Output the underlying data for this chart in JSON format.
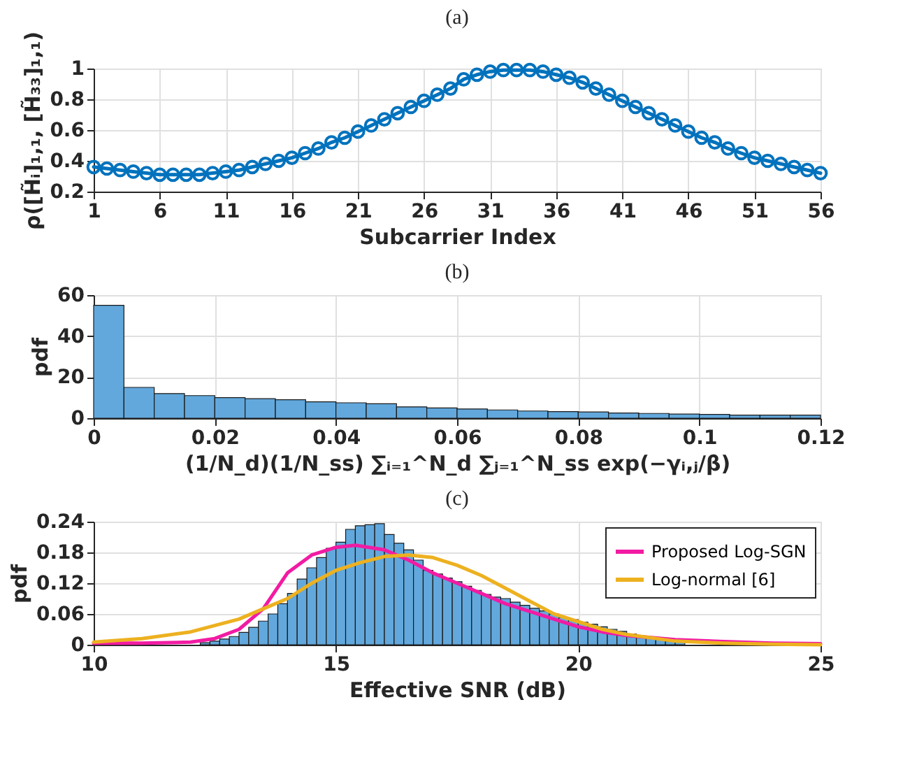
{
  "chart_data": [
    {
      "type": "line",
      "title": "(a)",
      "xlabel": "Subcarrier Index",
      "ylabel": "ρ([H̃ᵢ]₁,₁, [H̃₃₃]₁,₁)",
      "xlim": [
        1,
        56
      ],
      "xticks": [
        1,
        6,
        11,
        16,
        21,
        26,
        31,
        36,
        41,
        46,
        51,
        56
      ],
      "ylim": [
        0.2,
        1
      ],
      "yticks": [
        0.2,
        0.4,
        0.6,
        0.8,
        1
      ],
      "grid": true,
      "marker": "circle",
      "x": [
        1,
        2,
        3,
        4,
        5,
        6,
        7,
        8,
        9,
        10,
        11,
        12,
        13,
        14,
        15,
        16,
        17,
        18,
        19,
        20,
        21,
        22,
        23,
        24,
        25,
        26,
        27,
        28,
        29,
        30,
        31,
        32,
        33,
        34,
        35,
        36,
        37,
        38,
        39,
        40,
        41,
        42,
        43,
        44,
        45,
        46,
        47,
        48,
        49,
        50,
        51,
        52,
        53,
        54,
        55,
        56
      ],
      "series": [
        {
          "color": "#0072bd",
          "values": [
            0.36,
            0.35,
            0.34,
            0.33,
            0.32,
            0.31,
            0.31,
            0.31,
            0.31,
            0.32,
            0.33,
            0.34,
            0.36,
            0.38,
            0.4,
            0.42,
            0.45,
            0.48,
            0.52,
            0.55,
            0.59,
            0.63,
            0.67,
            0.71,
            0.75,
            0.79,
            0.83,
            0.87,
            0.93,
            0.96,
            0.98,
            0.99,
            0.99,
            0.99,
            0.98,
            0.96,
            0.94,
            0.91,
            0.87,
            0.83,
            0.79,
            0.75,
            0.71,
            0.67,
            0.63,
            0.59,
            0.55,
            0.52,
            0.48,
            0.45,
            0.42,
            0.4,
            0.38,
            0.36,
            0.34,
            0.32
          ]
        }
      ]
    },
    {
      "type": "histogram",
      "title": "(b)",
      "ylabel": "pdf",
      "xlabel": "(1/N_d)(1/N_ss) ∑ᵢ₌₁^N_d ∑ⱼ₌₁^N_ss exp(−γᵢ,ⱼ/β)",
      "xlim": [
        0,
        0.12
      ],
      "xticks": [
        0,
        0.02,
        0.04,
        0.06,
        0.08,
        0.1,
        0.12
      ],
      "ylim": [
        0,
        60
      ],
      "yticks": [
        0,
        20,
        40,
        60
      ],
      "grid": true,
      "color": "#62a8dc",
      "bins": [
        0,
        0.005,
        0.01,
        0.015,
        0.02,
        0.025,
        0.03,
        0.035,
        0.04,
        0.045,
        0.05,
        0.055,
        0.06,
        0.065,
        0.07,
        0.075,
        0.08,
        0.085,
        0.09,
        0.095,
        0.1,
        0.105,
        0.11,
        0.115,
        0.12
      ],
      "values": [
        55,
        15,
        12,
        11,
        10,
        9.5,
        9,
        8,
        7.5,
        7,
        5.5,
        5,
        4.5,
        4,
        3.5,
        3.2,
        3,
        2.5,
        2.3,
        2,
        1.8,
        1.5,
        1.5,
        1.5
      ]
    },
    {
      "type": "histogram",
      "title": "(c)",
      "ylabel": "pdf",
      "xlabel": "Effective SNR (dB)",
      "xlim": [
        10,
        25
      ],
      "xticks": [
        10,
        15,
        20,
        25
      ],
      "ylim": [
        0,
        0.24
      ],
      "yticks": [
        0,
        0.06,
        0.12,
        0.18,
        0.24
      ],
      "grid": true,
      "legend": "top right",
      "series": [
        {
          "color": "#62a8dc",
          "bins": [
            11.8,
            12.0,
            12.2,
            12.4,
            12.6,
            12.8,
            13.0,
            13.2,
            13.4,
            13.6,
            13.8,
            14.0,
            14.2,
            14.4,
            14.6,
            14.8,
            15.0,
            15.2,
            15.4,
            15.6,
            15.8,
            16.0,
            16.2,
            16.4,
            16.6,
            16.8,
            17.0,
            17.2,
            17.4,
            17.6,
            17.8,
            18.0,
            18.2,
            18.4,
            18.6,
            18.8,
            19.0,
            19.2,
            19.4,
            19.6,
            19.8,
            20.0,
            20.2,
            20.4,
            20.6,
            20.8,
            21.0,
            21.2,
            21.4,
            21.6,
            21.8,
            22.0,
            22.2,
            22.4,
            22.6
          ],
          "values": [
            null,
            null,
            0.004,
            0.007,
            0.011,
            0.016,
            0.024,
            0.034,
            0.046,
            0.06,
            0.08,
            0.1,
            0.128,
            0.15,
            0.17,
            0.188,
            0.2,
            0.225,
            0.232,
            0.234,
            0.236,
            0.215,
            0.198,
            0.185,
            0.165,
            0.145,
            0.138,
            0.13,
            0.123,
            0.114,
            0.106,
            0.098,
            0.093,
            0.09,
            0.083,
            0.077,
            0.071,
            0.066,
            0.06,
            0.053,
            0.049,
            0.044,
            0.04,
            0.035,
            0.03,
            0.026,
            0.021,
            0.017,
            0.013,
            0.01,
            0.007,
            0.005,
            null,
            null
          ]
        },
        {
          "type": "line",
          "name": "Proposed Log-SGN",
          "color": "#f21ba3",
          "x": [
            10,
            11,
            12,
            12.5,
            13,
            13.5,
            14,
            14.5,
            15,
            15.4,
            16,
            16.5,
            17,
            17.5,
            18,
            18.5,
            19,
            19.5,
            20,
            20.5,
            21,
            22,
            23,
            24,
            25
          ],
          "values": [
            0.003,
            0.003,
            0.005,
            0.012,
            0.03,
            0.07,
            0.14,
            0.175,
            0.19,
            0.194,
            0.185,
            0.165,
            0.14,
            0.12,
            0.1,
            0.08,
            0.065,
            0.05,
            0.035,
            0.025,
            0.018,
            0.01,
            0.006,
            0.003,
            0.002
          ]
        },
        {
          "type": "line",
          "name": "Log-normal [6]",
          "color": "#edb120",
          "x": [
            10,
            11,
            12,
            13,
            13.5,
            14,
            14.5,
            15,
            15.5,
            16,
            16.5,
            17,
            17.5,
            18,
            18.5,
            19,
            19.5,
            20,
            20.5,
            21,
            22,
            23,
            24,
            25
          ],
          "values": [
            0.005,
            0.012,
            0.025,
            0.05,
            0.07,
            0.09,
            0.12,
            0.145,
            0.16,
            0.172,
            0.175,
            0.17,
            0.155,
            0.135,
            0.11,
            0.085,
            0.06,
            0.045,
            0.03,
            0.02,
            0.007,
            0.003,
            0.001,
            0.0
          ]
        }
      ]
    }
  ]
}
